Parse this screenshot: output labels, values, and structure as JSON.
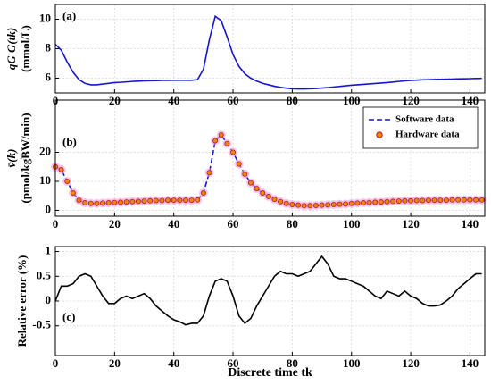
{
  "chart_data": [
    {
      "type": "line",
      "annotation": "(a)",
      "ylabel": [
        "qG G(tk)",
        "(mmol/L)"
      ],
      "xlim": [
        0,
        145
      ],
      "ylim": [
        5,
        11
      ],
      "xticks": [
        0,
        20,
        40,
        60,
        80,
        100,
        120,
        140
      ],
      "yticks": [
        6,
        8,
        10
      ],
      "grid": true,
      "x": [
        0,
        2,
        4,
        6,
        8,
        10,
        12,
        14,
        16,
        18,
        20,
        22,
        24,
        26,
        28,
        30,
        32,
        34,
        36,
        38,
        40,
        42,
        44,
        46,
        48,
        50,
        52,
        54,
        56,
        58,
        60,
        62,
        64,
        66,
        68,
        70,
        72,
        74,
        76,
        78,
        80,
        82,
        84,
        86,
        88,
        90,
        92,
        94,
        96,
        98,
        100,
        102,
        104,
        106,
        108,
        110,
        112,
        114,
        116,
        118,
        120,
        122,
        124,
        126,
        128,
        130,
        132,
        134,
        136,
        138,
        140,
        142,
        144
      ],
      "series": [
        {
          "color": "#1515d0",
          "linestyle": "solid",
          "values": [
            8.3,
            7.9,
            7.1,
            6.4,
            5.9,
            5.65,
            5.55,
            5.55,
            5.6,
            5.65,
            5.7,
            5.72,
            5.75,
            5.78,
            5.8,
            5.82,
            5.83,
            5.84,
            5.85,
            5.85,
            5.86,
            5.86,
            5.86,
            5.86,
            5.9,
            6.6,
            8.6,
            10.2,
            9.9,
            8.8,
            7.6,
            6.8,
            6.3,
            6.0,
            5.8,
            5.65,
            5.55,
            5.45,
            5.38,
            5.32,
            5.28,
            5.27,
            5.27,
            5.28,
            5.3,
            5.33,
            5.36,
            5.4,
            5.44,
            5.48,
            5.52,
            5.55,
            5.58,
            5.61,
            5.64,
            5.67,
            5.7,
            5.74,
            5.78,
            5.82,
            5.85,
            5.87,
            5.89,
            5.9,
            5.91,
            5.92,
            5.93,
            5.94,
            5.95,
            5.96,
            5.97,
            5.98,
            5.99
          ]
        }
      ]
    },
    {
      "type": "line",
      "annotation": "(b)",
      "ylabel": [
        "v̄(k)",
        "(pmol/kgBW/min)"
      ],
      "legend": "upper right",
      "xlim": [
        0,
        145
      ],
      "ylim": [
        -2,
        38
      ],
      "xticks": [
        0,
        20,
        40,
        60,
        80,
        100,
        120,
        140
      ],
      "yticks": [
        0,
        10,
        20
      ],
      "grid": true,
      "x": [
        0,
        2,
        4,
        6,
        8,
        10,
        12,
        14,
        16,
        18,
        20,
        22,
        24,
        26,
        28,
        30,
        32,
        34,
        36,
        38,
        40,
        42,
        44,
        46,
        48,
        50,
        52,
        54,
        56,
        58,
        60,
        62,
        64,
        66,
        68,
        70,
        72,
        74,
        76,
        78,
        80,
        82,
        84,
        86,
        88,
        90,
        92,
        94,
        96,
        98,
        100,
        102,
        104,
        106,
        108,
        110,
        112,
        114,
        116,
        118,
        120,
        122,
        124,
        126,
        128,
        130,
        132,
        134,
        136,
        138,
        140,
        142,
        144
      ],
      "series": [
        {
          "name": "Software data",
          "color": "#1515d0",
          "linestyle": "dashed",
          "values": [
            15,
            14,
            10,
            6,
            3.5,
            2.6,
            2.4,
            2.4,
            2.5,
            2.6,
            2.7,
            2.8,
            2.9,
            3,
            3.1,
            3.2,
            3.3,
            3.4,
            3.4,
            3.5,
            3.5,
            3.5,
            3.5,
            3.5,
            3.6,
            6,
            13,
            24,
            26,
            23,
            20,
            16,
            12.5,
            9.5,
            7.5,
            6,
            4.8,
            3.8,
            3,
            2.4,
            2,
            1.8,
            1.6,
            1.6,
            1.7,
            1.8,
            1.9,
            2,
            2.1,
            2.2,
            2.4,
            2.5,
            2.6,
            2.7,
            2.8,
            2.9,
            3,
            3.1,
            3.2,
            3.3,
            3.3,
            3.4,
            3.4,
            3.5,
            3.5,
            3.5,
            3.5,
            3.6,
            3.6,
            3.6,
            3.6,
            3.6,
            3.6
          ]
        },
        {
          "name": "Hardware data",
          "color": "#e08a10",
          "edgecolor": "#c81414",
          "marker": "circle",
          "values": [
            15,
            14,
            10,
            6,
            3.5,
            2.6,
            2.4,
            2.4,
            2.5,
            2.6,
            2.7,
            2.8,
            2.9,
            3,
            3.1,
            3.2,
            3.3,
            3.4,
            3.4,
            3.5,
            3.5,
            3.5,
            3.5,
            3.5,
            3.6,
            6,
            13,
            24,
            26,
            23,
            20,
            16,
            12.5,
            9.5,
            7.5,
            6,
            4.8,
            3.8,
            3,
            2.4,
            2,
            1.8,
            1.6,
            1.6,
            1.7,
            1.8,
            1.9,
            2,
            2.1,
            2.2,
            2.4,
            2.5,
            2.6,
            2.7,
            2.8,
            2.9,
            3,
            3.1,
            3.2,
            3.3,
            3.3,
            3.4,
            3.4,
            3.5,
            3.5,
            3.5,
            3.5,
            3.6,
            3.6,
            3.6,
            3.6,
            3.6,
            3.6
          ]
        }
      ]
    },
    {
      "type": "line",
      "annotation": "(c)",
      "ylabel": [
        "Relative error (%)"
      ],
      "xlabel": "Discrete time tk",
      "xlim": [
        0,
        145
      ],
      "ylim": [
        -1.1,
        1.1
      ],
      "xticks": [
        0,
        20,
        40,
        60,
        80,
        100,
        120,
        140
      ],
      "yticks": [
        -0.5,
        0,
        0.5,
        1
      ],
      "grid": true,
      "x": [
        0,
        2,
        4,
        6,
        8,
        10,
        12,
        14,
        16,
        18,
        20,
        22,
        24,
        26,
        28,
        30,
        32,
        34,
        36,
        38,
        40,
        42,
        44,
        46,
        48,
        50,
        52,
        54,
        56,
        58,
        60,
        62,
        64,
        66,
        68,
        70,
        72,
        74,
        76,
        78,
        80,
        82,
        84,
        86,
        88,
        90,
        92,
        94,
        96,
        98,
        100,
        102,
        104,
        106,
        108,
        110,
        112,
        114,
        116,
        118,
        120,
        122,
        124,
        126,
        128,
        130,
        132,
        134,
        136,
        138,
        140,
        142,
        144
      ],
      "series": [
        {
          "color": "#000000",
          "linestyle": "solid",
          "values": [
            0,
            0.3,
            0.3,
            0.35,
            0.5,
            0.55,
            0.5,
            0.3,
            0.1,
            -0.05,
            -0.05,
            0.05,
            0.1,
            0.05,
            0.1,
            0.15,
            0.05,
            -0.1,
            -0.2,
            -0.3,
            -0.38,
            -0.42,
            -0.48,
            -0.45,
            -0.45,
            -0.3,
            0.1,
            0.4,
            0.45,
            0.4,
            0.1,
            -0.3,
            -0.45,
            -0.35,
            -0.1,
            0.1,
            0.3,
            0.5,
            0.6,
            0.55,
            0.55,
            0.5,
            0.55,
            0.6,
            0.75,
            0.9,
            0.75,
            0.5,
            0.45,
            0.45,
            0.4,
            0.35,
            0.3,
            0.2,
            0.1,
            0.05,
            0.2,
            0.15,
            0.1,
            0.2,
            0.1,
            0.05,
            -0.05,
            -0.1,
            -0.1,
            -0.08,
            0,
            0.1,
            0.25,
            0.35,
            0.45,
            0.55,
            0.55
          ]
        }
      ]
    }
  ]
}
